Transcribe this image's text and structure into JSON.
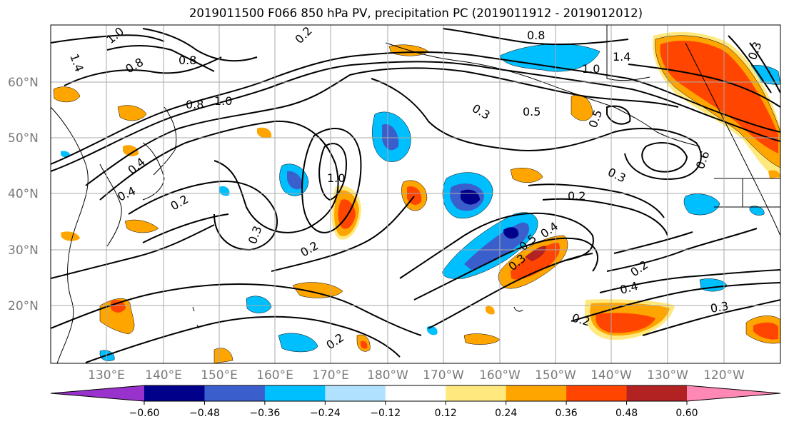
{
  "title": "2019011500 F066 850 hPa PV, precipitation PC (2019011912 - 2019012012)",
  "map": {
    "lat_labels": [
      "60°N",
      "50°N",
      "40°N",
      "30°N",
      "20°N"
    ],
    "lon_labels": [
      "130°E",
      "140°E",
      "150°E",
      "160°E",
      "170°E",
      "180°W",
      "170°W",
      "160°W",
      "150°W",
      "140°W",
      "130°W",
      "120°W"
    ],
    "contour_labels": [
      "1.4",
      "1.0",
      "0.8",
      "0.8",
      "1.0",
      "0.8",
      "1.4",
      "1.0",
      "0.5",
      "0.5",
      "0.3",
      "0.3",
      "0.2",
      "0.2",
      "0.4",
      "0.2",
      "0.3",
      "0.2",
      "0.5",
      "0.4",
      "0.3",
      "0.2",
      "0.4",
      "0.3",
      "0.2",
      "0.2",
      "0.4",
      "1.0",
      "0.8",
      "0.6",
      "0.3"
    ]
  },
  "colorbar": {
    "tick_labels": [
      "−0.60",
      "−0.48",
      "−0.36",
      "−0.24",
      "−0.12",
      "0.12",
      "0.24",
      "0.36",
      "0.48",
      "0.60"
    ],
    "colors": [
      "#9932cc",
      "#00008b",
      "#3a5fcd",
      "#00bfff",
      "#b0e2ff",
      "#ffffff",
      "#ffe97f",
      "#ffa500",
      "#ff4500",
      "#b22222",
      "#ff88b4"
    ]
  }
}
